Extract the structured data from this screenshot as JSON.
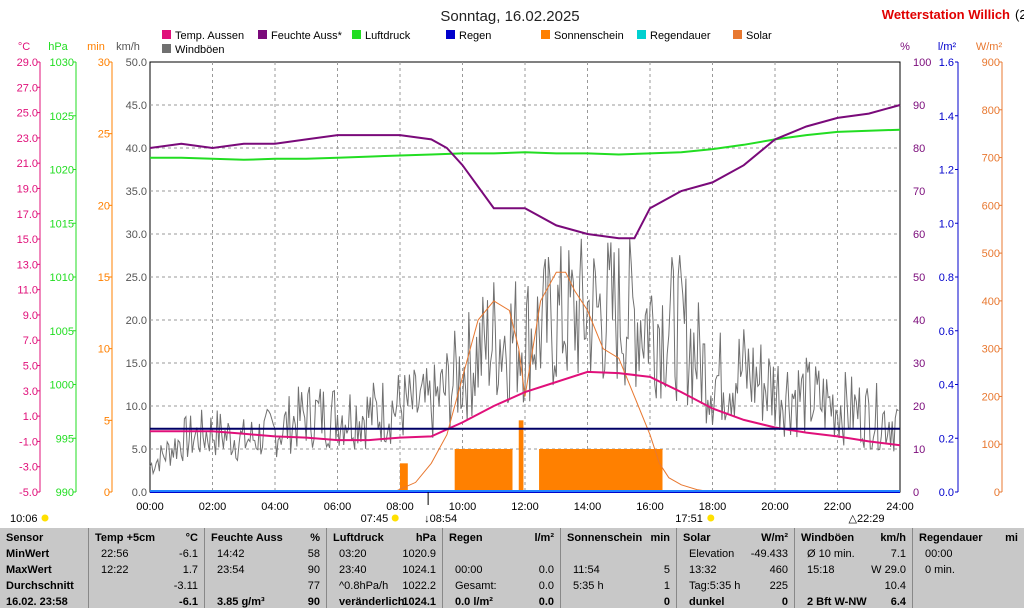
{
  "chart_data": {
    "type": "line",
    "title": "Sonntag, 16.02.2025",
    "station": "Wetterstation Willich",
    "truncated_corner": "(2",
    "unit_labels": {
      "temp": "°C",
      "hpa": "hPa",
      "min": "min",
      "kmh": "km/h",
      "pct": "%",
      "lm2": "l/m²",
      "wm2": "W/m²"
    },
    "legend": [
      {
        "name": "Temp. Aussen",
        "color": "#e0107a"
      },
      {
        "name": "Feuchte Auss*",
        "color": "#7a0a7a"
      },
      {
        "name": "Luftdruck",
        "color": "#22dd22"
      },
      {
        "name": "Regen",
        "color": "#0000cc"
      },
      {
        "name": "Sonnenschein",
        "color": "#ff8000"
      },
      {
        "name": "Regendauer",
        "color": "#00d0d0"
      },
      {
        "name": "Solar",
        "color": "#e87830"
      },
      {
        "name": "Windböen",
        "color": "#707070"
      }
    ],
    "x_ticks": [
      "00:00",
      "02:00",
      "04:00",
      "06:00",
      "08:00",
      "10:00",
      "12:00",
      "14:00",
      "16:00",
      "18:00",
      "20:00",
      "22:00",
      "24:00"
    ],
    "axes": {
      "temp": {
        "ticks": [
          "29.0",
          "27.0",
          "25.0",
          "23.0",
          "21.0",
          "19.0",
          "17.0",
          "15.0",
          "13.0",
          "11.0",
          "9.0",
          "7.0",
          "5.0",
          "3.0",
          "1.0",
          "-1.0",
          "-3.0",
          "-5.0"
        ],
        "color": "#e0107a"
      },
      "hpa": {
        "ticks": [
          "1030",
          "1025",
          "1020",
          "1015",
          "1010",
          "1005",
          "1000",
          "995",
          "990"
        ],
        "color": "#22dd22"
      },
      "min": {
        "ticks": [
          "30",
          "25",
          "20",
          "15",
          "10",
          "5",
          "0"
        ],
        "color": "#ff8000"
      },
      "kmh": {
        "ticks": [
          "50.0",
          "45.0",
          "40.0",
          "35.0",
          "30.0",
          "25.0",
          "20.0",
          "15.0",
          "10.0",
          "5.0",
          "0.0"
        ],
        "color": "#555555"
      },
      "pct": {
        "ticks": [
          "100",
          "90",
          "80",
          "70",
          "60",
          "50",
          "40",
          "30",
          "20",
          "10",
          "0"
        ],
        "color": "#7a0a7a"
      },
      "lm2": {
        "ticks": [
          "1.6",
          "1.4",
          "1.2",
          "1.0",
          "0.8",
          "0.6",
          "0.4",
          "0.2",
          "0.0"
        ],
        "color": "#0000cc"
      },
      "wm2": {
        "ticks": [
          "900",
          "800",
          "700",
          "600",
          "500",
          "400",
          "300",
          "200",
          "100",
          "0"
        ],
        "color": "#e87830"
      }
    },
    "sunrise": "07:45",
    "sunset": "17:51",
    "sun_marker": "08:54",
    "moon_marker": "22:29",
    "bottom_left_time": "10:06",
    "series": [
      {
        "name": "Temp. Aussen",
        "unit": "°C",
        "x": [
          0,
          1,
          2,
          3,
          4,
          5,
          6,
          7,
          8,
          9,
          10,
          11,
          12,
          13,
          14,
          15,
          16,
          17,
          18,
          19,
          20,
          21,
          22,
          23,
          24
        ],
        "y": [
          -0.2,
          -0.2,
          -0.2,
          -0.4,
          -0.6,
          -0.7,
          -0.9,
          -0.9,
          -0.7,
          -0.6,
          0.5,
          1.8,
          2.9,
          3.7,
          4.5,
          4.4,
          4.1,
          2.9,
          1.6,
          0.7,
          0.1,
          -0.3,
          -0.6,
          -1.0,
          -1.3
        ]
      },
      {
        "name": "Feuchte Auss*",
        "unit": "%",
        "x": [
          0,
          1,
          2,
          3,
          4,
          5,
          6,
          7,
          8,
          9,
          9.5,
          10,
          11,
          12,
          13,
          14,
          15,
          15.5,
          16,
          17,
          18,
          19,
          20,
          21,
          22,
          23,
          24
        ],
        "y": [
          80,
          81,
          80,
          81,
          81,
          82,
          83,
          83,
          83,
          82,
          80,
          76,
          66,
          66,
          62,
          60,
          59,
          59,
          66,
          70,
          72,
          76,
          82,
          85,
          87,
          88,
          90
        ]
      },
      {
        "name": "Luftdruck",
        "unit": "hPa",
        "x": [
          0,
          1,
          2,
          3,
          4,
          5,
          6,
          7,
          8,
          9,
          10,
          11,
          12,
          13,
          14,
          15,
          16,
          17,
          18,
          19,
          20,
          21,
          22,
          23,
          24
        ],
        "y": [
          1021.1,
          1021.1,
          1021.0,
          1020.9,
          1021.0,
          1021.0,
          1021.1,
          1021.2,
          1021.3,
          1021.4,
          1021.5,
          1021.5,
          1021.6,
          1021.5,
          1021.5,
          1021.4,
          1021.5,
          1021.6,
          1021.9,
          1022.3,
          1022.8,
          1023.2,
          1023.5,
          1023.6,
          1023.7
        ]
      },
      {
        "name": "Regen",
        "unit": "l/m²",
        "x": [
          0,
          24
        ],
        "y": [
          0,
          0
        ]
      },
      {
        "name": "Sonnenschein",
        "unit": "min",
        "bars": [
          {
            "from": 8.0,
            "to": 8.25,
            "y": 2
          },
          {
            "from": 9.75,
            "to": 11.6,
            "y": 3
          },
          {
            "from": 11.8,
            "to": 11.95,
            "y": 5
          },
          {
            "from": 12.45,
            "to": 16.4,
            "y": 3
          }
        ]
      },
      {
        "name": "Solar",
        "unit": "W/m²",
        "x": [
          0,
          7.8,
          8.5,
          9.0,
          9.5,
          10.0,
          10.5,
          11.0,
          11.5,
          11.8,
          12.0,
          12.5,
          13.0,
          13.3,
          13.6,
          14.0,
          14.5,
          15.0,
          15.5,
          16.0,
          16.3,
          16.6,
          17.0,
          17.5,
          18.0,
          24
        ],
        "y": [
          0,
          0,
          20,
          60,
          120,
          240,
          360,
          400,
          380,
          300,
          200,
          400,
          460,
          460,
          420,
          380,
          300,
          280,
          200,
          120,
          60,
          30,
          15,
          5,
          0,
          0
        ]
      },
      {
        "name": "Windböen",
        "unit": "km/h",
        "x": [
          0,
          1,
          2,
          3,
          4,
          5,
          6,
          7,
          8,
          9,
          10,
          11,
          12,
          13,
          14,
          15,
          16,
          17,
          18,
          19,
          20,
          21,
          22,
          23,
          24
        ],
        "y": [
          3,
          6,
          7,
          6,
          7,
          9,
          9,
          9,
          10,
          10,
          14,
          18,
          18,
          20,
          21,
          21,
          20,
          19,
          13,
          14,
          12,
          11,
          10,
          9,
          8
        ]
      }
    ]
  },
  "stats": {
    "sensor": {
      "header": "Sensor",
      "rows": [
        "MinWert",
        "MaxWert",
        "Durchschnitt",
        "16.02. 23:58"
      ]
    },
    "temp": {
      "header": "Temp +5cm",
      "unit": "°C",
      "rows": [
        [
          "22:56",
          "-6.1"
        ],
        [
          "12:22",
          "1.7"
        ],
        [
          "",
          "-3.11"
        ],
        [
          "",
          "-6.1"
        ]
      ]
    },
    "feuchte": {
      "header": "Feuchte Auss",
      "unit": "%",
      "rows": [
        [
          "14:42",
          "58"
        ],
        [
          "23:54",
          "90"
        ],
        [
          "",
          "77"
        ],
        [
          "3.85 g/m³",
          "90"
        ]
      ]
    },
    "luftdruck": {
      "header": "Luftdruck",
      "unit": "hPa",
      "rows": [
        [
          "03:20",
          "1020.9"
        ],
        [
          "23:40",
          "1024.1"
        ],
        [
          "^0.8hPa/h",
          "1022.2"
        ],
        [
          "veränderlich",
          "1024.1"
        ]
      ]
    },
    "regen": {
      "header": "Regen",
      "unit": "l/m²",
      "rows": [
        [
          "",
          ""
        ],
        [
          "00:00",
          "0.0"
        ],
        [
          "Gesamt:",
          "0.0"
        ],
        [
          "0.0 l/m²",
          "0.0"
        ]
      ]
    },
    "sonne": {
      "header": "Sonnenschein",
      "unit": "min",
      "rows": [
        [
          "",
          ""
        ],
        [
          "11:54",
          "5"
        ],
        [
          "5:35 h",
          "1"
        ],
        [
          "",
          "0"
        ]
      ]
    },
    "solar": {
      "header": "Solar",
      "unit": "W/m²",
      "rows": [
        [
          "Elevation",
          "-49.433"
        ],
        [
          "13:32",
          "460"
        ],
        [
          "Tag:5:35 h",
          "225"
        ],
        [
          "dunkel",
          "0"
        ]
      ]
    },
    "wind": {
      "header": "Windböen",
      "unit": "km/h",
      "rows": [
        [
          "Ø 10 min.",
          "7.1"
        ],
        [
          "15:18",
          "W 29.0"
        ],
        [
          "",
          "10.4"
        ],
        [
          "2 Bft W-NW",
          "6.4"
        ]
      ]
    },
    "regendauer": {
      "header": "Regendauer",
      "unit": "mi",
      "rows": [
        [
          "00:00",
          ""
        ],
        [
          "0 min.",
          ""
        ],
        [
          "",
          ""
        ],
        [
          "",
          ""
        ]
      ]
    }
  }
}
